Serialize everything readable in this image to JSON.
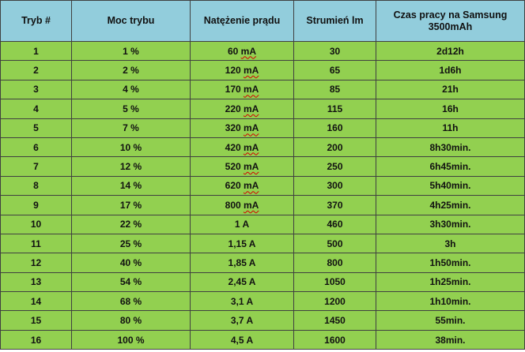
{
  "colors": {
    "header_bg": "#92cddc",
    "row_bg": "#92d050",
    "border": "#404040",
    "spellcheck_underline": "#d40000"
  },
  "table": {
    "headers": [
      "Tryb #",
      "Moc trybu",
      "Natężenie prądu",
      "Strumień lm",
      "Czas pracy na Samsung 3500mAh"
    ],
    "rows": [
      {
        "mode": "1",
        "power": "1 %",
        "current": "60 mA",
        "lumens": "30",
        "runtime": "2d12h"
      },
      {
        "mode": "2",
        "power": "2 %",
        "current": "120 mA",
        "lumens": "65",
        "runtime": "1d6h"
      },
      {
        "mode": "3",
        "power": "4 %",
        "current": "170 mA",
        "lumens": "85",
        "runtime": "21h"
      },
      {
        "mode": "4",
        "power": "5 %",
        "current": "220 mA",
        "lumens": "115",
        "runtime": "16h"
      },
      {
        "mode": "5",
        "power": "7 %",
        "current": "320 mA",
        "lumens": "160",
        "runtime": "11h"
      },
      {
        "mode": "6",
        "power": "10 %",
        "current": "420 mA",
        "lumens": "200",
        "runtime": "8h30min."
      },
      {
        "mode": "7",
        "power": "12 %",
        "current": "520 mA",
        "lumens": "250",
        "runtime": "6h45min."
      },
      {
        "mode": "8",
        "power": "14 %",
        "current": "620 mA",
        "lumens": "300",
        "runtime": "5h40min."
      },
      {
        "mode": "9",
        "power": "17 %",
        "current": "800 mA",
        "lumens": "370",
        "runtime": "4h25min."
      },
      {
        "mode": "10",
        "power": "22 %",
        "current": "1 A",
        "lumens": "460",
        "runtime": "3h30min."
      },
      {
        "mode": "11",
        "power": "25 %",
        "current": "1,15 A",
        "lumens": "500",
        "runtime": "3h"
      },
      {
        "mode": "12",
        "power": "40 %",
        "current": "1,85 A",
        "lumens": "800",
        "runtime": "1h50min."
      },
      {
        "mode": "13",
        "power": "54 %",
        "current": "2,45 A",
        "lumens": "1050",
        "runtime": "1h25min."
      },
      {
        "mode": "14",
        "power": "68 %",
        "current": "3,1 A",
        "lumens": "1200",
        "runtime": "1h10min."
      },
      {
        "mode": "15",
        "power": "80 %",
        "current": "3,7 A",
        "lumens": "1450",
        "runtime": "55min."
      },
      {
        "mode": "16",
        "power": "100 %",
        "current": "4,5 A",
        "lumens": "1600",
        "runtime": "38min."
      }
    ]
  }
}
